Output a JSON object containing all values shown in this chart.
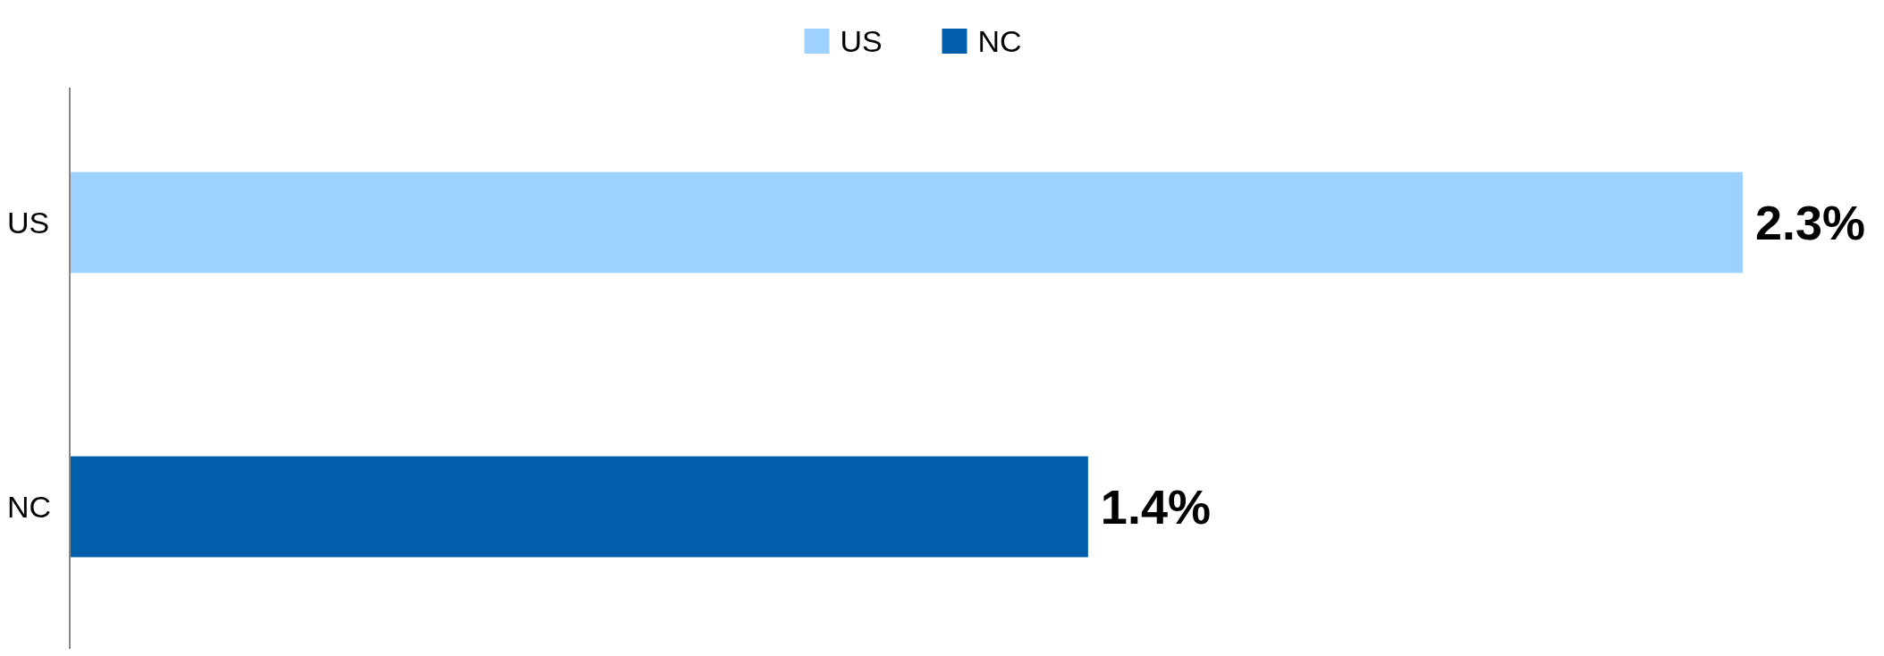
{
  "chart_data": {
    "type": "bar",
    "orientation": "horizontal",
    "categories": [
      "US",
      "NC"
    ],
    "legend": "top",
    "series": [
      {
        "name": "US",
        "color": "#9dd1ff",
        "values": [
          2.3,
          null
        ],
        "value_labels": [
          "2.3%",
          null
        ]
      },
      {
        "name": "NC",
        "color": "#025fab",
        "values": [
          null,
          1.4
        ],
        "value_labels": [
          null,
          "1.4%"
        ]
      }
    ]
  }
}
